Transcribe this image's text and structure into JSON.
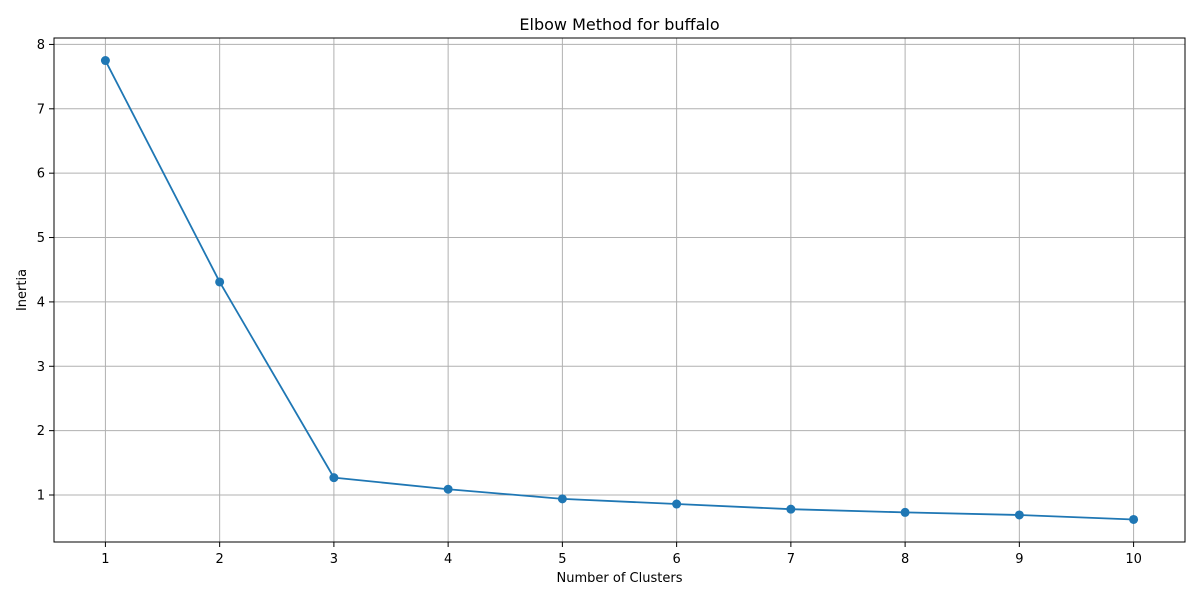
{
  "chart_data": {
    "type": "line",
    "title": "Elbow Method for buffalo",
    "xlabel": "Number of Clusters",
    "ylabel": "Inertia",
    "x": [
      1,
      2,
      3,
      4,
      5,
      6,
      7,
      8,
      9,
      10
    ],
    "series": [
      {
        "values": [
          7.75,
          4.31,
          1.27,
          1.09,
          0.94,
          0.86,
          0.78,
          0.73,
          0.69,
          0.62
        ],
        "marker": "circle",
        "color": "#1f77b4"
      }
    ],
    "xlim": [
      0.55,
      10.45
    ],
    "ylim": [
      0.27,
      8.1
    ],
    "x_ticks": [
      "1",
      "2",
      "3",
      "4",
      "5",
      "6",
      "7",
      "8",
      "9",
      "10"
    ],
    "y_ticks": [
      "1",
      "2",
      "3",
      "4",
      "5",
      "6",
      "7",
      "8"
    ],
    "grid": true,
    "legend": "none"
  }
}
